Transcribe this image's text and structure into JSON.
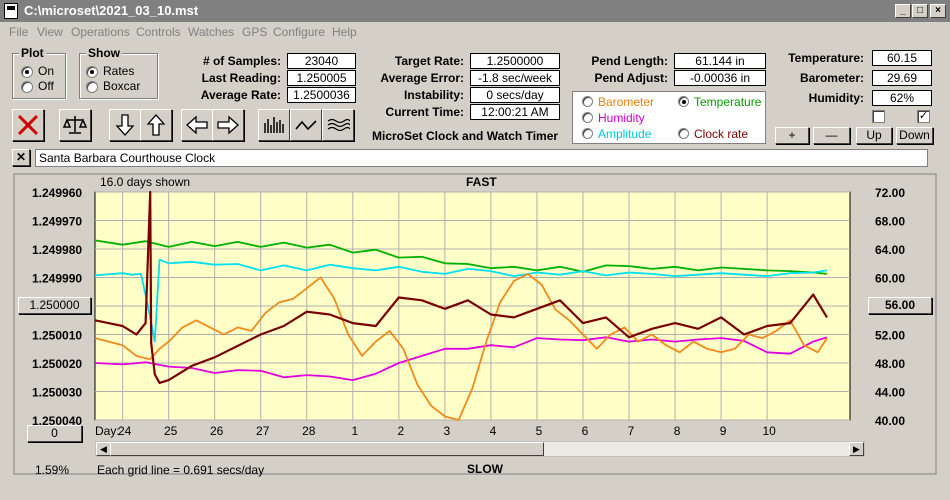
{
  "window": {
    "title": "C:\\microset\\2021_03_10.mst"
  },
  "menu": [
    "File",
    "View",
    "Operations",
    "Controls",
    "Watches",
    "GPS",
    "Configure",
    "Help"
  ],
  "plot": {
    "title": "Plot",
    "on": "On",
    "off": "Off",
    "selected": "On"
  },
  "show": {
    "title": "Show",
    "rates": "Rates",
    "boxcar": "Boxcar",
    "selected": "Rates"
  },
  "stats": {
    "samples_label": "# of Samples:",
    "samples": "23040",
    "last_label": "Last Reading:",
    "last": "1.250005",
    "avg_label": "Average Rate:",
    "avg": "1.2500036",
    "target_label": "Target Rate:",
    "target": "1.2500000",
    "avgerr_label": "Average Error:",
    "avgerr": "-1.8 sec/week",
    "instab_label": "Instability:",
    "instab": "0 secs/day",
    "time_label": "Current Time:",
    "time": "12:00:21 AM",
    "pendlen_label": "Pend Length:",
    "pendlen": "61.144 in",
    "pendadj_label": "Pend Adjust:",
    "pendadj": "-0.00036 in",
    "temp_label": "Temperature:",
    "temp": "60.15",
    "baro_label": "Barometer:",
    "baro": "29.69",
    "hum_label": "Humidity:",
    "hum": "62%"
  },
  "app_title": "MicroSet Clock and Watch Timer",
  "sensors": {
    "barometer": "Barometer",
    "temperature": "Temperature",
    "humidity": "Humidity",
    "amplitude": "Amplitude",
    "clockrate": "Clock rate",
    "selected": "Temperature",
    "colors": {
      "barometer": "#e8820a",
      "temperature": "#00a000",
      "humidity": "#d000d0",
      "amplitude": "#00c8d8",
      "clockrate": "#800000"
    }
  },
  "small_buttons": {
    "plus": "+",
    "minus": "—",
    "up": "Up",
    "down": "Down"
  },
  "clock_name": "Santa Barbara Courthouse Clock",
  "chart_header": {
    "days_shown": "16.0 days shown",
    "fast": "FAST",
    "slow": "SLOW",
    "grid_note": "Each grid line = 0.691 secs/day",
    "day_label": "Day:",
    "percent": "1.59%",
    "left_box": "1.250000",
    "right_box": "56.00",
    "zero_box": "0"
  },
  "icons": [
    "close-x-icon",
    "scale-icon",
    "arrow-down-icon",
    "arrow-up-icon",
    "arrow-left-icon",
    "arrow-right-icon",
    "bar-graph-icon",
    "line-graph-icon",
    "wave-icon"
  ],
  "chart_data": {
    "type": "line",
    "x_tick_labels": [
      "24",
      "25",
      "26",
      "27",
      "28",
      "1",
      "2",
      "3",
      "4",
      "5",
      "6",
      "7",
      "8",
      "9",
      "10"
    ],
    "y_left_ticks": [
      "1.249960",
      "1.249970",
      "1.249980",
      "1.249990",
      "1.250000",
      "1.250010",
      "1.250020",
      "1.250030",
      "1.250040"
    ],
    "y_left_range": [
      1.24996,
      1.25004
    ],
    "y_right_ticks": [
      "72.00",
      "68.00",
      "64.00",
      "60.00",
      "56.00",
      "52.00",
      "48.00",
      "44.00",
      "40.00"
    ],
    "y_right_range": [
      40,
      72
    ],
    "x_range": [
      -0.6,
      15.8
    ],
    "grid": true,
    "series": [
      {
        "key": "temperature",
        "color": "#00b000",
        "axis": "right",
        "x": [
          -0.6,
          0,
          0.5,
          1,
          1.5,
          2,
          2.5,
          3,
          3.5,
          4,
          4.5,
          5,
          5.5,
          6,
          6.5,
          7,
          7.5,
          8,
          8.5,
          9,
          9.5,
          10,
          10.5,
          11,
          11.5,
          12,
          12.5,
          13,
          13.5,
          14,
          14.5,
          15,
          15.3
        ],
        "y": [
          65.2,
          64.6,
          65.1,
          64.3,
          65.0,
          64.4,
          65.0,
          64.3,
          64.9,
          64.2,
          64.6,
          63.5,
          63.9,
          62.8,
          62.9,
          62.0,
          61.9,
          61.3,
          61.5,
          61.0,
          61.5,
          60.8,
          61.7,
          61.6,
          61.2,
          61.5,
          61.0,
          61.4,
          61.2,
          61.0,
          60.9,
          60.7,
          60.5
        ]
      },
      {
        "key": "amplitude",
        "color": "#00e0f0",
        "axis": "right",
        "x": [
          -0.6,
          0,
          0.2,
          0.4,
          0.55,
          0.7,
          0.8,
          1,
          1.5,
          2,
          2.5,
          3,
          3.5,
          4,
          4.5,
          5,
          5.5,
          6,
          6.5,
          7,
          7.5,
          8,
          8.5,
          9,
          9.5,
          10,
          10.5,
          11,
          11.5,
          12,
          12.5,
          13,
          13.5,
          14,
          14.5,
          15,
          15.3
        ],
        "y": [
          60.3,
          60.6,
          60.4,
          60.5,
          56.0,
          51.0,
          62.5,
          62.0,
          62.2,
          61.8,
          61.9,
          61.0,
          61.7,
          61.0,
          61.8,
          61.3,
          61.0,
          61.5,
          60.8,
          60.5,
          61.2,
          60.9,
          60.2,
          60.7,
          60.4,
          60.9,
          60.3,
          60.7,
          60.5,
          60.2,
          60.4,
          60.6,
          60.4,
          60.2,
          60.6,
          60.7,
          61.0
        ]
      },
      {
        "key": "humidity",
        "color": "#e000e0",
        "axis": "right",
        "x": [
          -0.6,
          0,
          0.5,
          1,
          1.5,
          2,
          2.5,
          3,
          3.5,
          4,
          4.5,
          5,
          5.5,
          6,
          6.5,
          7,
          7.5,
          8,
          8.5,
          9,
          9.5,
          10,
          10.5,
          11,
          11.5,
          12,
          12.5,
          13,
          13.5,
          14,
          14.5,
          15,
          15.3
        ],
        "y": [
          48.0,
          47.8,
          48.1,
          47.5,
          47.3,
          46.6,
          47.0,
          46.9,
          46.0,
          46.3,
          46.1,
          45.6,
          46.5,
          48.0,
          49.0,
          50.0,
          50.0,
          50.5,
          50.2,
          51.5,
          51.3,
          51.2,
          51.6,
          51.0,
          51.3,
          51.0,
          51.3,
          51.5,
          51.1,
          49.5,
          49.3,
          51.0,
          51.6
        ]
      },
      {
        "key": "barometer",
        "color": "#f08a1a",
        "axis": "right",
        "x": [
          -0.6,
          0,
          0.3,
          0.6,
          0.8,
          1.0,
          1.3,
          1.6,
          1.9,
          2.2,
          2.5,
          2.8,
          3.1,
          3.4,
          3.7,
          4.0,
          4.3,
          4.6,
          4.9,
          5.2,
          5.5,
          5.8,
          6.1,
          6.4,
          6.7,
          7.0,
          7.3,
          7.6,
          7.9,
          8.2,
          8.5,
          8.8,
          9.1,
          9.4,
          9.7,
          10.0,
          10.3,
          10.6,
          10.9,
          11.2,
          11.5,
          11.8,
          12.1,
          12.4,
          12.7,
          13.0,
          13.3,
          13.6,
          13.9,
          14.2,
          14.5,
          14.8,
          15.1,
          15.3
        ],
        "y": [
          51.5,
          50.5,
          49.0,
          48.5,
          50.0,
          51.0,
          53.0,
          54.0,
          53.0,
          52.0,
          53.0,
          52.5,
          55.0,
          56.5,
          57.0,
          58.5,
          60.0,
          57.0,
          52.0,
          49.0,
          51.0,
          52.5,
          50.0,
          45.0,
          42.0,
          40.5,
          40.0,
          44.5,
          51.0,
          56.5,
          59.5,
          60.5,
          59.0,
          55.5,
          54.0,
          52.0,
          50.0,
          52.0,
          53.0,
          51.0,
          52.0,
          50.5,
          49.5,
          51.0,
          50.0,
          49.5,
          50.0,
          52.0,
          51.5,
          52.5,
          54.0,
          50.5,
          49.5,
          51.5
        ]
      },
      {
        "key": "clockrate",
        "color": "#7a0000",
        "axis": "left",
        "x": [
          -0.6,
          0,
          0.3,
          0.5,
          0.6,
          0.62,
          0.7,
          0.8,
          1.0,
          1.5,
          2,
          2.5,
          3,
          3.5,
          4,
          4.5,
          5,
          5.5,
          6,
          6.5,
          7,
          7.5,
          8,
          8.5,
          9,
          9.5,
          10,
          10.5,
          11,
          11.5,
          12,
          12.5,
          13,
          13.5,
          14,
          14.5,
          15,
          15.3
        ],
        "y": [
          1.250005,
          1.250007,
          1.25001,
          1.250006,
          1.24996,
          1.250013,
          1.250024,
          1.250027,
          1.250026,
          1.250021,
          1.250018,
          1.250014,
          1.25001,
          1.250007,
          1.250002,
          1.250003,
          1.250006,
          1.250007,
          1.249997,
          1.249998,
          1.250001,
          1.249998,
          1.250003,
          1.250004,
          1.250001,
          1.249998,
          1.250006,
          1.250004,
          1.250011,
          1.250008,
          1.250006,
          1.250008,
          1.250004,
          1.25001,
          1.250007,
          1.250006,
          1.249996,
          1.250004
        ]
      }
    ]
  }
}
